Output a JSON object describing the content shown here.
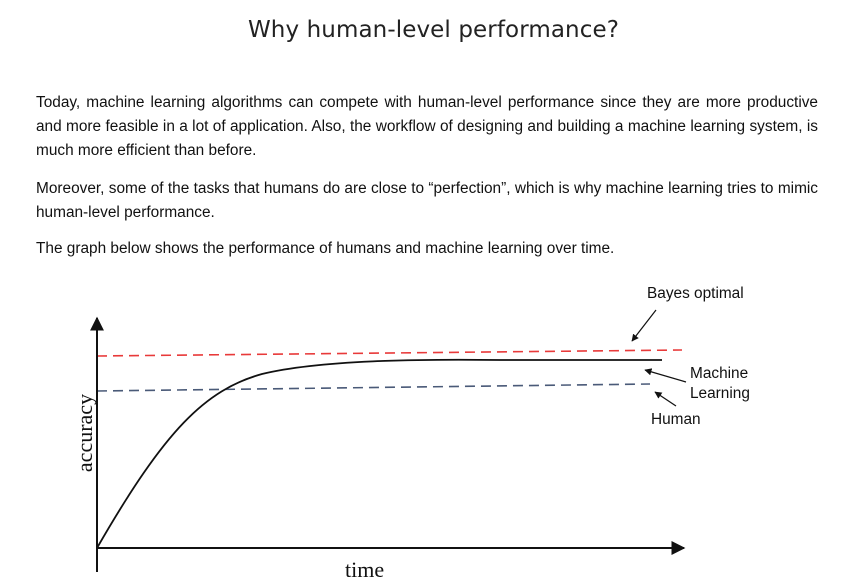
{
  "document": {
    "title": "Why human-level performance?",
    "paragraphs": [
      "Today, machine learning algorithms can compete with human-level performance since they are more productive and more feasible in a lot of application. Also, the workflow of designing and building a machine learning system, is much more efficient than before.",
      "Moreover, some of the tasks that humans do are close to “perfection”, which is why machine learning tries to mimic human-level performance.",
      "The graph below shows the performance of humans and machine learning over time."
    ]
  },
  "figure": {
    "x_axis_label": "time",
    "y_axis_label": "accuracy",
    "labels": {
      "bayes_optimal": "Bayes optimal",
      "machine_learning_line1": "Machine",
      "machine_learning_line2": "Learning",
      "human": "Human"
    },
    "colors": {
      "bayes_line": "#e83a3a",
      "human_line": "#4a5a78",
      "curve": "#111111",
      "axes": "#111111"
    }
  }
}
